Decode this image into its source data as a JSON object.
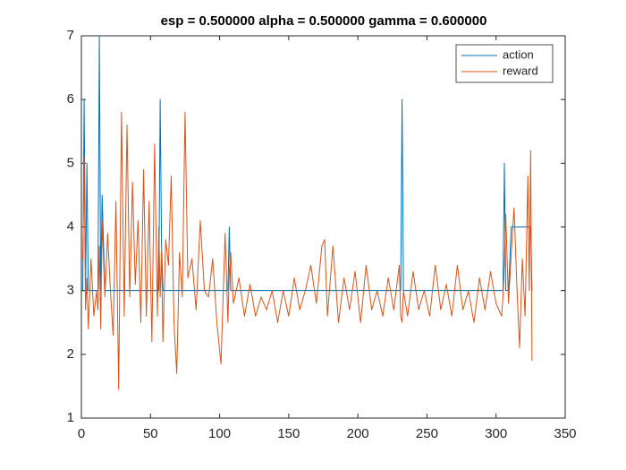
{
  "chart_data": {
    "type": "line",
    "title": "esp = 0.500000 alpha = 0.500000 gamma = 0.600000",
    "x": [
      1,
      2,
      3,
      4,
      5,
      7,
      9,
      11,
      12,
      13,
      14,
      15,
      17,
      19,
      21,
      23,
      25,
      27,
      29,
      31,
      33,
      35,
      37,
      39,
      41,
      43,
      45,
      47,
      49,
      51,
      53,
      55,
      56,
      57,
      58,
      59,
      61,
      63,
      65,
      67,
      69,
      71,
      73,
      75,
      77,
      80,
      83,
      86,
      89,
      92,
      95,
      98,
      101,
      104,
      106,
      107,
      108,
      110,
      114,
      118,
      122,
      126,
      130,
      134,
      138,
      142,
      146,
      150,
      154,
      158,
      162,
      166,
      170,
      174,
      176,
      178,
      182,
      186,
      190,
      194,
      198,
      202,
      206,
      210,
      214,
      218,
      222,
      226,
      230,
      231,
      232,
      233,
      236,
      240,
      244,
      248,
      252,
      256,
      260,
      264,
      268,
      272,
      276,
      280,
      284,
      288,
      292,
      296,
      300,
      304,
      305,
      306,
      307,
      309,
      311,
      313,
      315,
      317,
      319,
      321,
      323,
      324,
      325,
      326
    ],
    "series": [
      {
        "name": "action",
        "color": "#0072bd",
        "values": [
          3,
          6,
          3,
          5,
          3,
          3,
          3,
          3,
          3,
          7,
          3,
          4.5,
          3,
          3,
          3,
          3,
          3,
          3,
          3,
          3,
          3,
          3,
          3,
          3,
          3,
          3,
          3,
          3,
          3,
          3,
          3,
          3,
          3,
          6,
          3.7,
          3,
          3,
          3,
          3,
          3,
          3,
          3,
          3,
          3,
          3,
          3,
          3,
          3,
          3,
          3,
          3,
          3,
          3,
          3,
          3,
          4,
          3,
          3,
          3,
          3,
          3,
          3,
          3,
          3,
          3,
          3,
          3,
          3,
          3,
          3,
          3,
          3,
          3,
          3,
          3,
          3,
          3,
          3,
          3,
          3,
          3,
          3,
          3,
          3,
          3,
          3,
          3,
          3,
          3,
          3,
          6,
          3,
          3,
          3,
          3,
          3,
          3,
          3,
          3,
          3,
          3,
          3,
          3,
          3,
          3,
          3,
          3,
          3,
          3,
          3,
          3,
          5,
          3,
          3,
          4,
          4,
          4,
          4,
          4,
          4,
          4,
          4,
          4,
          3
        ]
      },
      {
        "name": "reward",
        "color": "#d95319",
        "values": [
          3.5,
          5.1,
          2.7,
          3.2,
          2.4,
          3.5,
          2.6,
          3.0,
          2.7,
          3.7,
          2.4,
          4.1,
          2.9,
          3.9,
          3.0,
          2.3,
          4.4,
          1.45,
          5.8,
          2.6,
          5.6,
          2.9,
          4.7,
          3.1,
          4.1,
          2.5,
          4.9,
          2.6,
          4.4,
          2.2,
          5.3,
          2.6,
          4.0,
          2.9,
          3.6,
          2.2,
          3.8,
          3.4,
          4.8,
          2.5,
          1.7,
          3.6,
          2.9,
          5.8,
          3.2,
          3.5,
          2.7,
          4.1,
          3.0,
          2.9,
          3.5,
          2.5,
          1.85,
          3.9,
          2.5,
          3.3,
          3.6,
          2.8,
          3.2,
          2.6,
          3.1,
          2.6,
          2.9,
          2.7,
          3.0,
          2.5,
          3.0,
          2.6,
          3.2,
          2.7,
          3.0,
          3.4,
          2.8,
          3.7,
          3.8,
          2.6,
          3.7,
          2.5,
          3.2,
          2.7,
          3.3,
          2.5,
          3.4,
          2.7,
          3.0,
          2.6,
          3.2,
          2.7,
          3.4,
          2.6,
          2.5,
          3.0,
          2.6,
          3.3,
          2.7,
          3.0,
          2.6,
          3.4,
          2.7,
          3.1,
          2.6,
          3.4,
          2.7,
          3.0,
          2.5,
          3.2,
          2.7,
          3.3,
          2.8,
          2.6,
          2.9,
          3.4,
          4.2,
          2.8,
          3.6,
          4.3,
          3.1,
          2.1,
          3.5,
          2.6,
          4.8,
          3.0,
          5.2,
          1.9
        ]
      }
    ],
    "xlim": [
      0,
      350
    ],
    "xticks": [
      0,
      50,
      100,
      150,
      200,
      250,
      300,
      350
    ],
    "ylim": [
      1,
      7
    ],
    "yticks": [
      1,
      2,
      3,
      4,
      5,
      6,
      7
    ],
    "legend": "upper-right"
  }
}
